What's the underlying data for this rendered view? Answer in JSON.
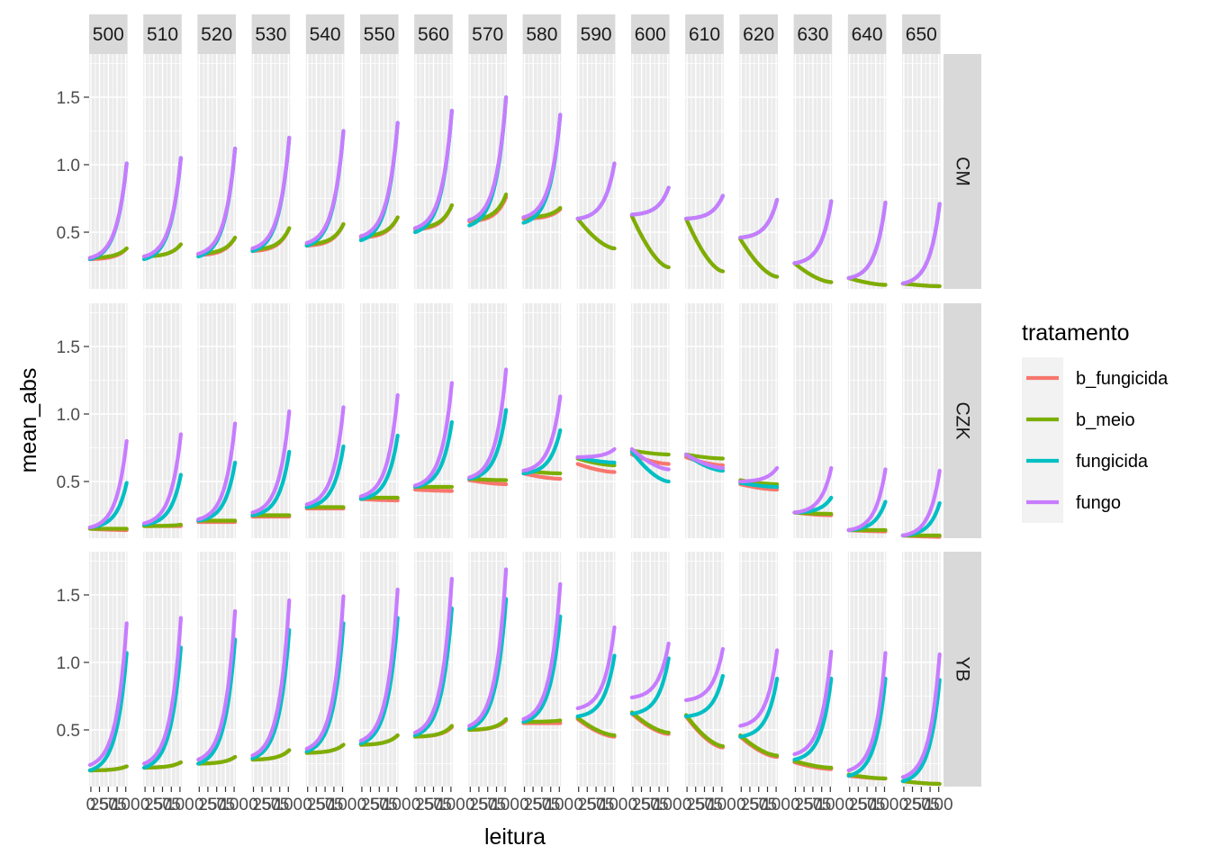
{
  "chart_data": {
    "type": "line",
    "xlabel": "leitura",
    "ylabel": "mean_abs",
    "ylim": [
      0.08,
      1.82
    ],
    "y_ticks": [
      0.5,
      1.0,
      1.5
    ],
    "y_tick_labels": [
      "0.5",
      "1.0",
      "1.5"
    ],
    "x_tick_labels": [
      "0",
      "25",
      "50",
      "75",
      "100"
    ],
    "legend": {
      "title": "tratamento",
      "placement": "right",
      "entries": [
        "b_fungicida",
        "b_meio",
        "fungicida",
        "fungo"
      ],
      "colors": [
        "#F8766D",
        "#7CAE00",
        "#00BFC4",
        "#C77CFF"
      ]
    },
    "col_facets": [
      "500",
      "510",
      "520",
      "530",
      "540",
      "550",
      "560",
      "570",
      "580",
      "590",
      "600",
      "610",
      "620",
      "630",
      "640",
      "650"
    ],
    "row_facets": [
      "CM",
      "CZK",
      "YB"
    ],
    "panels": {
      "CM": {
        "b_fungicida": [
          [
            0.3,
            0.38
          ],
          [
            0.32,
            0.41
          ],
          [
            0.33,
            0.46
          ],
          [
            0.36,
            0.53
          ],
          [
            0.4,
            0.56
          ],
          [
            0.46,
            0.61
          ],
          [
            0.52,
            0.7
          ],
          [
            0.58,
            0.76
          ],
          [
            0.6,
            0.67
          ],
          [
            0.6,
            0.38
          ],
          [
            0.62,
            0.24
          ],
          [
            0.6,
            0.21
          ],
          [
            0.45,
            0.17
          ],
          [
            0.27,
            0.13
          ],
          [
            0.16,
            0.11
          ],
          [
            0.12,
            0.1
          ]
        ],
        "b_meio": [
          [
            0.31,
            0.38
          ],
          [
            0.32,
            0.41
          ],
          [
            0.34,
            0.46
          ],
          [
            0.37,
            0.53
          ],
          [
            0.41,
            0.56
          ],
          [
            0.47,
            0.61
          ],
          [
            0.53,
            0.7
          ],
          [
            0.59,
            0.78
          ],
          [
            0.61,
            0.68
          ],
          [
            0.6,
            0.38
          ],
          [
            0.62,
            0.24
          ],
          [
            0.6,
            0.21
          ],
          [
            0.45,
            0.17
          ],
          [
            0.27,
            0.13
          ],
          [
            0.16,
            0.11
          ],
          [
            0.12,
            0.1
          ]
        ],
        "fungicida": [
          [
            0.3,
            1.01
          ],
          [
            0.3,
            1.05
          ],
          [
            0.32,
            1.12
          ],
          [
            0.36,
            1.2
          ],
          [
            0.4,
            1.25
          ],
          [
            0.44,
            1.31
          ],
          [
            0.5,
            1.4
          ],
          [
            0.55,
            1.5
          ],
          [
            0.57,
            1.37
          ],
          [
            0.6,
            1.01
          ],
          [
            0.63,
            0.83
          ],
          [
            0.6,
            0.77
          ],
          [
            0.46,
            0.74
          ],
          [
            0.27,
            0.73
          ],
          [
            0.16,
            0.72
          ],
          [
            0.12,
            0.71
          ]
        ],
        "fungo": [
          [
            0.31,
            1.01
          ],
          [
            0.32,
            1.05
          ],
          [
            0.34,
            1.12
          ],
          [
            0.38,
            1.2
          ],
          [
            0.42,
            1.25
          ],
          [
            0.47,
            1.31
          ],
          [
            0.53,
            1.4
          ],
          [
            0.59,
            1.5
          ],
          [
            0.61,
            1.37
          ],
          [
            0.6,
            1.01
          ],
          [
            0.63,
            0.83
          ],
          [
            0.6,
            0.77
          ],
          [
            0.46,
            0.74
          ],
          [
            0.27,
            0.73
          ],
          [
            0.16,
            0.72
          ],
          [
            0.12,
            0.71
          ]
        ]
      },
      "CZK": {
        "b_fungicida": [
          [
            0.15,
            0.14
          ],
          [
            0.17,
            0.17
          ],
          [
            0.2,
            0.2
          ],
          [
            0.24,
            0.24
          ],
          [
            0.3,
            0.3
          ],
          [
            0.37,
            0.36
          ],
          [
            0.44,
            0.43
          ],
          [
            0.51,
            0.48
          ],
          [
            0.56,
            0.52
          ],
          [
            0.63,
            0.57
          ],
          [
            0.7,
            0.63
          ],
          [
            0.68,
            0.62
          ],
          [
            0.48,
            0.44
          ],
          [
            0.27,
            0.25
          ],
          [
            0.14,
            0.13
          ],
          [
            0.1,
            0.09
          ]
        ],
        "b_meio": [
          [
            0.15,
            0.15
          ],
          [
            0.17,
            0.18
          ],
          [
            0.21,
            0.21
          ],
          [
            0.25,
            0.25
          ],
          [
            0.31,
            0.31
          ],
          [
            0.38,
            0.38
          ],
          [
            0.46,
            0.46
          ],
          [
            0.52,
            0.51
          ],
          [
            0.58,
            0.56
          ],
          [
            0.67,
            0.62
          ],
          [
            0.73,
            0.7
          ],
          [
            0.7,
            0.67
          ],
          [
            0.51,
            0.48
          ],
          [
            0.27,
            0.26
          ],
          [
            0.14,
            0.14
          ],
          [
            0.1,
            0.1
          ]
        ],
        "fungicida": [
          [
            0.16,
            0.49
          ],
          [
            0.18,
            0.55
          ],
          [
            0.21,
            0.64
          ],
          [
            0.25,
            0.72
          ],
          [
            0.31,
            0.76
          ],
          [
            0.37,
            0.84
          ],
          [
            0.46,
            0.94
          ],
          [
            0.52,
            1.03
          ],
          [
            0.56,
            0.88
          ],
          [
            0.68,
            0.64
          ],
          [
            0.72,
            0.5
          ],
          [
            0.7,
            0.58
          ],
          [
            0.49,
            0.46
          ],
          [
            0.27,
            0.38
          ],
          [
            0.14,
            0.35
          ],
          [
            0.1,
            0.34
          ]
        ],
        "fungo": [
          [
            0.16,
            0.8
          ],
          [
            0.19,
            0.85
          ],
          [
            0.22,
            0.93
          ],
          [
            0.27,
            1.02
          ],
          [
            0.33,
            1.05
          ],
          [
            0.39,
            1.14
          ],
          [
            0.47,
            1.23
          ],
          [
            0.53,
            1.33
          ],
          [
            0.58,
            1.13
          ],
          [
            0.68,
            0.74
          ],
          [
            0.74,
            0.59
          ],
          [
            0.7,
            0.6
          ],
          [
            0.5,
            0.6
          ],
          [
            0.27,
            0.6
          ],
          [
            0.14,
            0.59
          ],
          [
            0.1,
            0.58
          ]
        ]
      },
      "YB": {
        "b_fungicida": [
          [
            0.2,
            0.23
          ],
          [
            0.22,
            0.26
          ],
          [
            0.25,
            0.3
          ],
          [
            0.28,
            0.35
          ],
          [
            0.33,
            0.39
          ],
          [
            0.39,
            0.46
          ],
          [
            0.45,
            0.52
          ],
          [
            0.5,
            0.57
          ],
          [
            0.55,
            0.55
          ],
          [
            0.58,
            0.45
          ],
          [
            0.62,
            0.47
          ],
          [
            0.6,
            0.37
          ],
          [
            0.45,
            0.3
          ],
          [
            0.26,
            0.21
          ],
          [
            0.16,
            0.14
          ],
          [
            0.12,
            0.1
          ]
        ],
        "b_meio": [
          [
            0.2,
            0.23
          ],
          [
            0.22,
            0.26
          ],
          [
            0.25,
            0.3
          ],
          [
            0.28,
            0.35
          ],
          [
            0.33,
            0.39
          ],
          [
            0.39,
            0.46
          ],
          [
            0.45,
            0.53
          ],
          [
            0.5,
            0.58
          ],
          [
            0.56,
            0.57
          ],
          [
            0.59,
            0.46
          ],
          [
            0.63,
            0.48
          ],
          [
            0.61,
            0.38
          ],
          [
            0.46,
            0.31
          ],
          [
            0.27,
            0.22
          ],
          [
            0.17,
            0.14
          ],
          [
            0.12,
            0.1
          ]
        ],
        "fungicida": [
          [
            0.2,
            1.07
          ],
          [
            0.22,
            1.11
          ],
          [
            0.25,
            1.17
          ],
          [
            0.29,
            1.24
          ],
          [
            0.34,
            1.29
          ],
          [
            0.4,
            1.33
          ],
          [
            0.46,
            1.4
          ],
          [
            0.51,
            1.47
          ],
          [
            0.56,
            1.34
          ],
          [
            0.6,
            1.05
          ],
          [
            0.62,
            1.03
          ],
          [
            0.6,
            0.9
          ],
          [
            0.45,
            0.88
          ],
          [
            0.28,
            0.88
          ],
          [
            0.16,
            0.88
          ],
          [
            0.12,
            0.87
          ]
        ],
        "fungo": [
          [
            0.24,
            1.29
          ],
          [
            0.25,
            1.33
          ],
          [
            0.28,
            1.38
          ],
          [
            0.31,
            1.46
          ],
          [
            0.36,
            1.49
          ],
          [
            0.42,
            1.54
          ],
          [
            0.48,
            1.62
          ],
          [
            0.53,
            1.69
          ],
          [
            0.58,
            1.58
          ],
          [
            0.66,
            1.26
          ],
          [
            0.74,
            1.14
          ],
          [
            0.72,
            1.1
          ],
          [
            0.53,
            1.09
          ],
          [
            0.32,
            1.08
          ],
          [
            0.2,
            1.07
          ],
          [
            0.15,
            1.06
          ]
        ]
      }
    }
  }
}
